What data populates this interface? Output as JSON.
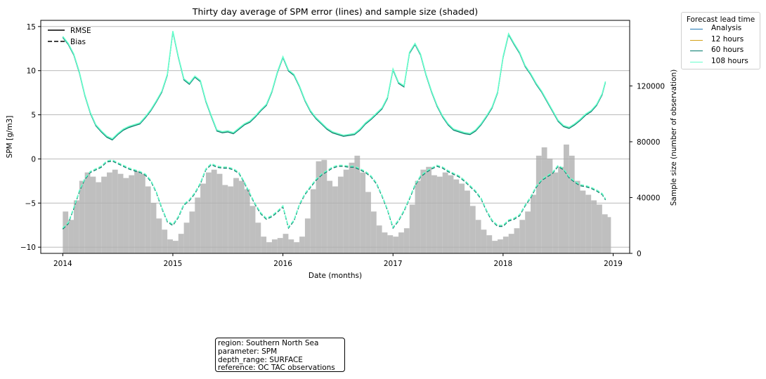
{
  "chart_data": {
    "type": "line",
    "title": "Thirty day average of SPM error (lines) and sample size (shaded)",
    "xlabel": "Date (months)",
    "ylabel": "SPM [g/m3]",
    "y2label": "Sample size (number of observation)",
    "xlim": [
      2013.8,
      2019.15
    ],
    "ylim": [
      -10.7,
      15.7
    ],
    "y2lim": [
      0,
      167000
    ],
    "x_ticks": [
      2014,
      2015,
      2016,
      2017,
      2018,
      2019
    ],
    "x_tick_labels": [
      "2014",
      "2015",
      "2016",
      "2017",
      "2018",
      "2019"
    ],
    "y_ticks": [
      -10,
      -5,
      0,
      5,
      10,
      15
    ],
    "y_tick_labels": [
      "−10",
      "−5",
      "0",
      "5",
      "10",
      "15"
    ],
    "y2_ticks": [
      0,
      40000,
      80000,
      120000
    ],
    "y2_tick_labels": [
      "0",
      "40000",
      "80000",
      "120000"
    ],
    "grid": "horizontal",
    "style_legend": {
      "placement": "top-left",
      "entries": [
        {
          "label": "RMSE",
          "dash": "solid"
        },
        {
          "label": "Bias",
          "dash": "dashed"
        }
      ]
    },
    "lead_time_legend": {
      "title": "Forecast lead time",
      "placement": "outside-top-right",
      "entries": [
        {
          "label": "Analysis",
          "color": "#1f77b4"
        },
        {
          "label": "12 hours",
          "color": "#d4a017"
        },
        {
          "label": "60 hours",
          "color": "#00796b"
        },
        {
          "label": "108 hours",
          "color": "#66ffcc"
        }
      ]
    },
    "series": [
      {
        "name": "RMSE",
        "axis": "left",
        "x": [
          2014.0,
          2014.05,
          2014.1,
          2014.15,
          2014.2,
          2014.25,
          2014.3,
          2014.35,
          2014.4,
          2014.45,
          2014.5,
          2014.55,
          2014.6,
          2014.65,
          2014.7,
          2014.75,
          2014.8,
          2014.85,
          2014.9,
          2014.95,
          2015.0,
          2015.05,
          2015.1,
          2015.15,
          2015.2,
          2015.25,
          2015.3,
          2015.35,
          2015.4,
          2015.45,
          2015.5,
          2015.55,
          2015.6,
          2015.65,
          2015.7,
          2015.75,
          2015.8,
          2015.85,
          2015.9,
          2015.95,
          2016.0,
          2016.05,
          2016.1,
          2016.15,
          2016.2,
          2016.25,
          2016.3,
          2016.35,
          2016.4,
          2016.45,
          2016.5,
          2016.55,
          2016.6,
          2016.65,
          2016.7,
          2016.75,
          2016.8,
          2016.85,
          2016.9,
          2016.95,
          2017.0,
          2017.05,
          2017.1,
          2017.15,
          2017.2,
          2017.25,
          2017.3,
          2017.35,
          2017.4,
          2017.45,
          2017.5,
          2017.55,
          2017.6,
          2017.65,
          2017.7,
          2017.75,
          2017.8,
          2017.85,
          2017.9,
          2017.95,
          2018.0,
          2018.05,
          2018.1,
          2018.15,
          2018.2,
          2018.25,
          2018.3,
          2018.35,
          2018.4,
          2018.45,
          2018.5,
          2018.55,
          2018.6,
          2018.65,
          2018.7,
          2018.75,
          2018.8,
          2018.85,
          2018.9,
          2018.93
        ],
        "values": [
          13.8,
          13.0,
          11.8,
          9.8,
          7.2,
          5.2,
          3.8,
          3.1,
          2.5,
          2.2,
          2.8,
          3.3,
          3.6,
          3.8,
          4.0,
          4.7,
          5.5,
          6.5,
          7.6,
          9.5,
          14.4,
          11.5,
          9.0,
          8.5,
          9.3,
          8.8,
          6.5,
          4.8,
          3.2,
          3.0,
          3.1,
          2.9,
          3.4,
          3.9,
          4.2,
          4.8,
          5.5,
          6.1,
          7.6,
          9.8,
          11.5,
          10.0,
          9.5,
          8.2,
          6.6,
          5.4,
          4.6,
          4.0,
          3.4,
          3.0,
          2.8,
          2.6,
          2.7,
          2.8,
          3.3,
          4.0,
          4.5,
          5.1,
          5.7,
          6.9,
          10.1,
          8.6,
          8.2,
          12.0,
          13.0,
          11.8,
          9.5,
          7.6,
          6.0,
          4.8,
          3.9,
          3.3,
          3.1,
          2.9,
          2.8,
          3.2,
          3.9,
          4.8,
          5.8,
          7.5,
          11.5,
          14.1,
          13.0,
          12.0,
          10.5,
          9.6,
          8.5,
          7.6,
          6.5,
          5.4,
          4.3,
          3.7,
          3.5,
          3.9,
          4.4,
          5.0,
          5.4,
          6.1,
          7.3,
          8.7
        ]
      },
      {
        "name": "Bias",
        "axis": "left",
        "x": [
          2014.0,
          2014.05,
          2014.1,
          2014.15,
          2014.2,
          2014.25,
          2014.3,
          2014.35,
          2014.4,
          2014.45,
          2014.5,
          2014.55,
          2014.6,
          2014.65,
          2014.7,
          2014.75,
          2014.8,
          2014.85,
          2014.9,
          2014.95,
          2015.0,
          2015.05,
          2015.1,
          2015.15,
          2015.2,
          2015.25,
          2015.3,
          2015.35,
          2015.4,
          2015.45,
          2015.5,
          2015.55,
          2015.6,
          2015.65,
          2015.7,
          2015.75,
          2015.8,
          2015.85,
          2015.9,
          2015.95,
          2016.0,
          2016.05,
          2016.1,
          2016.15,
          2016.2,
          2016.25,
          2016.3,
          2016.35,
          2016.4,
          2016.45,
          2016.5,
          2016.55,
          2016.6,
          2016.65,
          2016.7,
          2016.75,
          2016.8,
          2016.85,
          2016.9,
          2016.95,
          2017.0,
          2017.05,
          2017.1,
          2017.15,
          2017.2,
          2017.25,
          2017.3,
          2017.35,
          2017.4,
          2017.45,
          2017.5,
          2017.55,
          2017.6,
          2017.65,
          2017.7,
          2017.75,
          2017.8,
          2017.85,
          2017.9,
          2017.95,
          2018.0,
          2018.05,
          2018.1,
          2018.15,
          2018.2,
          2018.25,
          2018.3,
          2018.35,
          2018.4,
          2018.45,
          2018.5,
          2018.55,
          2018.6,
          2018.65,
          2018.7,
          2018.75,
          2018.8,
          2018.85,
          2018.9,
          2018.93
        ],
        "values": [
          -7.9,
          -7.3,
          -5.6,
          -3.7,
          -2.3,
          -1.5,
          -1.2,
          -0.9,
          -0.3,
          -0.2,
          -0.5,
          -0.8,
          -1.1,
          -1.3,
          -1.5,
          -1.8,
          -2.5,
          -3.8,
          -5.6,
          -7.1,
          -7.5,
          -6.6,
          -5.2,
          -4.7,
          -3.9,
          -2.8,
          -1.2,
          -0.6,
          -0.9,
          -1.0,
          -1.0,
          -1.2,
          -1.6,
          -2.7,
          -4.0,
          -5.2,
          -6.2,
          -6.8,
          -6.5,
          -6.0,
          -5.4,
          -7.8,
          -7.0,
          -5.2,
          -4.0,
          -3.2,
          -2.4,
          -1.8,
          -1.4,
          -1.0,
          -0.8,
          -0.8,
          -0.9,
          -0.9,
          -1.2,
          -1.5,
          -2.0,
          -2.8,
          -4.2,
          -5.8,
          -7.8,
          -7.0,
          -5.9,
          -4.5,
          -3.0,
          -2.0,
          -1.5,
          -1.1,
          -0.8,
          -1.0,
          -1.4,
          -1.7,
          -2.0,
          -2.5,
          -3.1,
          -3.7,
          -4.5,
          -5.9,
          -7.0,
          -7.6,
          -7.6,
          -7.0,
          -6.8,
          -6.4,
          -5.3,
          -4.4,
          -3.2,
          -2.4,
          -2.0,
          -1.6,
          -0.8,
          -1.2,
          -2.1,
          -2.6,
          -3.0,
          -3.1,
          -3.3,
          -3.6,
          -4.0,
          -4.6
        ]
      },
      {
        "name": "Sample size",
        "axis": "right",
        "type": "bar",
        "x": [
          2014.0,
          2014.05,
          2014.1,
          2014.15,
          2014.2,
          2014.25,
          2014.3,
          2014.35,
          2014.4,
          2014.45,
          2014.5,
          2014.55,
          2014.6,
          2014.65,
          2014.7,
          2014.75,
          2014.8,
          2014.85,
          2014.9,
          2014.95,
          2015.0,
          2015.05,
          2015.1,
          2015.15,
          2015.2,
          2015.25,
          2015.3,
          2015.35,
          2015.4,
          2015.45,
          2015.5,
          2015.55,
          2015.6,
          2015.65,
          2015.7,
          2015.75,
          2015.8,
          2015.85,
          2015.9,
          2015.95,
          2016.0,
          2016.05,
          2016.1,
          2016.15,
          2016.2,
          2016.25,
          2016.3,
          2016.35,
          2016.4,
          2016.45,
          2016.5,
          2016.55,
          2016.6,
          2016.65,
          2016.7,
          2016.75,
          2016.8,
          2016.85,
          2016.9,
          2016.95,
          2017.0,
          2017.05,
          2017.1,
          2017.15,
          2017.2,
          2017.25,
          2017.3,
          2017.35,
          2017.4,
          2017.45,
          2017.5,
          2017.55,
          2017.6,
          2017.65,
          2017.7,
          2017.75,
          2017.8,
          2017.85,
          2017.9,
          2017.95,
          2018.0,
          2018.05,
          2018.1,
          2018.15,
          2018.2,
          2018.25,
          2018.3,
          2018.35,
          2018.4,
          2018.45,
          2018.5,
          2018.55,
          2018.6,
          2018.65,
          2018.7,
          2018.75,
          2018.8,
          2018.85,
          2018.9,
          2018.93
        ],
        "values": [
          30000,
          24000,
          38000,
          52000,
          58000,
          55000,
          51000,
          55000,
          58000,
          60000,
          57000,
          54000,
          56000,
          59000,
          57000,
          48000,
          36000,
          25000,
          17000,
          10000,
          9000,
          14000,
          22000,
          30000,
          40000,
          50000,
          58000,
          60000,
          57000,
          49000,
          48000,
          54000,
          52000,
          46000,
          34000,
          22000,
          12000,
          8000,
          10000,
          11000,
          14000,
          10000,
          8000,
          12000,
          25000,
          46000,
          66000,
          67000,
          52000,
          48000,
          55000,
          60000,
          65000,
          70000,
          58000,
          44000,
          30000,
          20000,
          15000,
          13000,
          12000,
          15000,
          18000,
          35000,
          52000,
          60000,
          62000,
          56000,
          55000,
          58000,
          56000,
          53000,
          50000,
          45000,
          34000,
          24000,
          17000,
          13000,
          9000,
          10000,
          12000,
          14000,
          18000,
          24000,
          30000,
          42000,
          70000,
          76000,
          68000,
          58000,
          62000,
          78000,
          70000,
          52000,
          45000,
          42000,
          38000,
          35000,
          28000,
          26000
        ]
      }
    ]
  },
  "info_box": {
    "lines": [
      "region: Southern North Sea",
      "parameter: SPM",
      "depth_range: SURFACE",
      "reference: OC TAC observations"
    ]
  }
}
